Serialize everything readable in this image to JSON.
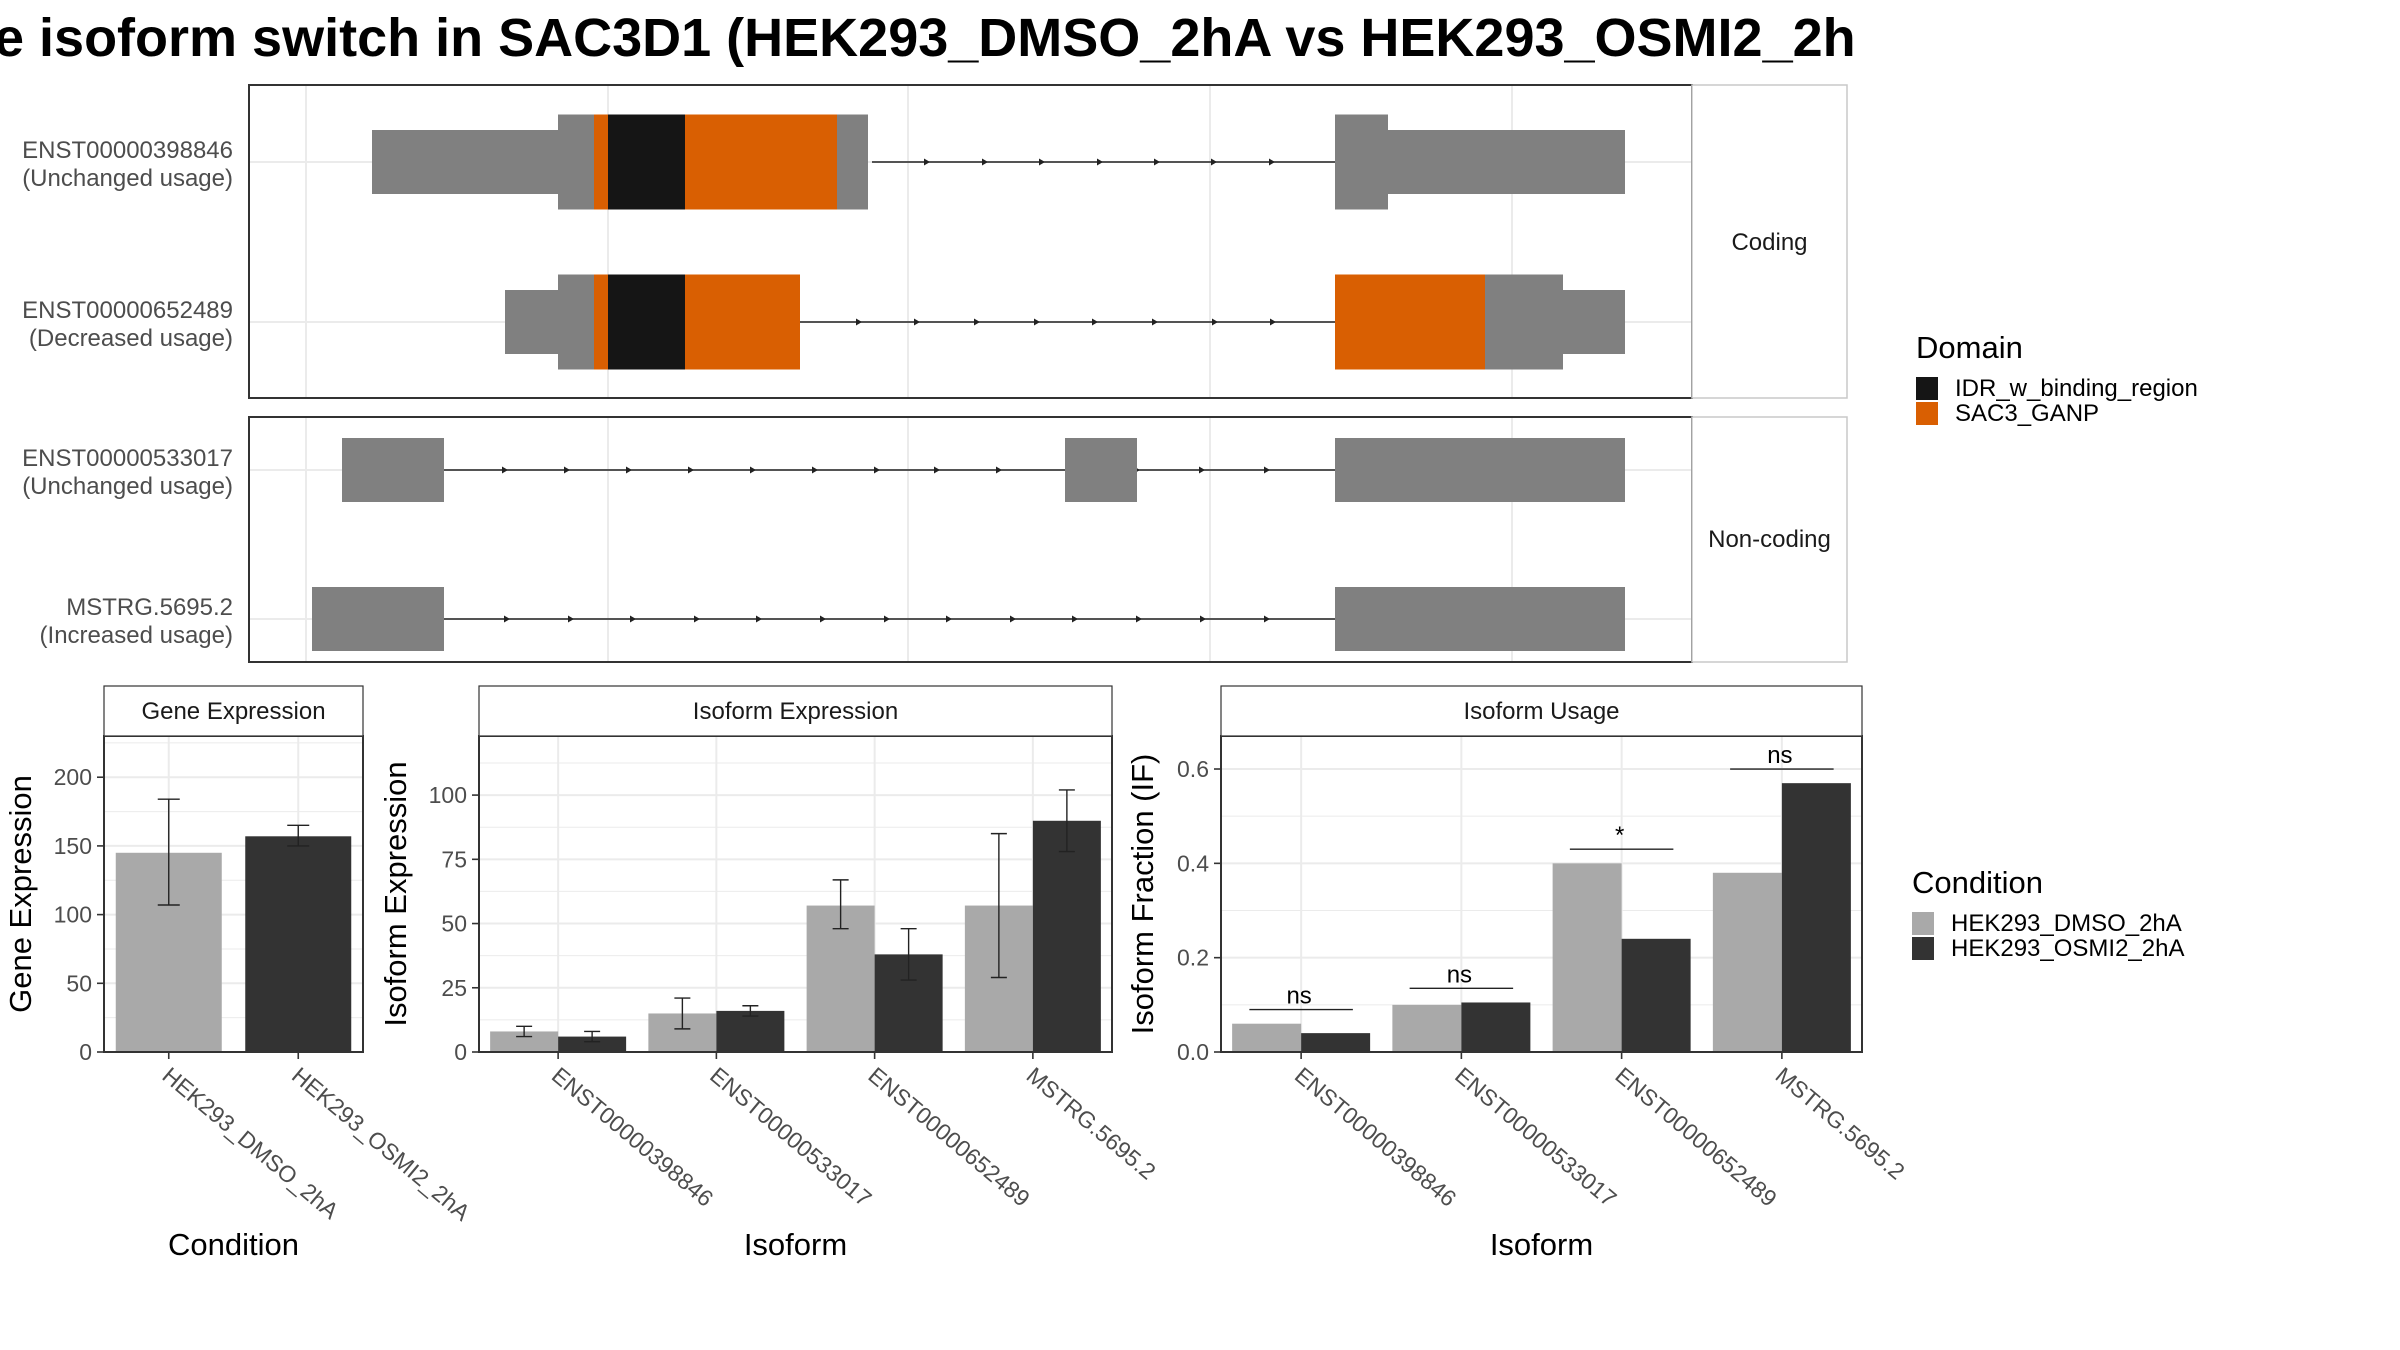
{
  "title": "e isoform switch in SAC3D1 (HEK293_DMSO_2hA vs HEK293_OSMI2_2h",
  "colors": {
    "cds": "#151515",
    "orange": "#d95f02",
    "grey": "#808080",
    "dmso": "#a9a9a9",
    "osmi": "#333333",
    "grid": "#ebebeb",
    "frame": "#333333",
    "strip": "#f2f2f2"
  },
  "structure": {
    "facets": [
      "Coding",
      "Non-coding"
    ],
    "transcripts": [
      {
        "id": "ENST00000398846",
        "usage": "(Unchanged usage)",
        "facet": 0
      },
      {
        "id": "ENST00000652489",
        "usage": "(Decreased usage)",
        "facet": 0
      },
      {
        "id": "ENST00000533017",
        "usage": "(Unchanged usage)",
        "facet": 1
      },
      {
        "id": "MSTRG.5695.2",
        "usage": "(Increased usage)",
        "facet": 1
      }
    ]
  },
  "legend_domain": {
    "title": "Domain",
    "items": [
      {
        "label": "IDR_w_binding_region",
        "color": "#151515"
      },
      {
        "label": "SAC3_GANP",
        "color": "#d95f02"
      }
    ]
  },
  "legend_condition": {
    "title": "Condition",
    "items": [
      {
        "label": "HEK293_DMSO_2hA",
        "color": "#a9a9a9"
      },
      {
        "label": "HEK293_OSMI2_2hA",
        "color": "#333333"
      }
    ]
  },
  "chart_data": [
    {
      "type": "bar",
      "title": "Gene Expression",
      "xlabel": "Condition",
      "ylabel": "Gene Expression",
      "ylim": [
        0,
        230
      ],
      "yticks": [
        0,
        50,
        100,
        150,
        200
      ],
      "categories": [
        "HEK293_DMSO_2hA",
        "HEK293_OSMI2_2hA"
      ],
      "values": [
        145,
        157
      ],
      "errors": [
        [
          107,
          184
        ],
        [
          150,
          165
        ]
      ]
    },
    {
      "type": "bar",
      "title": "Isoform Expression",
      "xlabel": "Isoform",
      "ylabel": "Isoform Expression",
      "ylim": [
        0,
        123
      ],
      "yticks": [
        0,
        25,
        50,
        75,
        100
      ],
      "categories": [
        "ENST00000398846",
        "ENST00000533017",
        "ENST00000652489",
        "MSTRG.5695.2"
      ],
      "series": [
        {
          "name": "HEK293_DMSO_2hA",
          "values": [
            8,
            15,
            57,
            57
          ],
          "errors": [
            [
              6,
              10
            ],
            [
              9,
              21
            ],
            [
              48,
              67
            ],
            [
              29,
              85
            ]
          ]
        },
        {
          "name": "HEK293_OSMI2_2hA",
          "values": [
            6,
            16,
            38,
            90
          ],
          "errors": [
            [
              4,
              8
            ],
            [
              14,
              18
            ],
            [
              28,
              48
            ],
            [
              78,
              102
            ]
          ]
        }
      ]
    },
    {
      "type": "bar",
      "title": "Isoform Usage",
      "xlabel": "Isoform",
      "ylabel": "Isoform Fraction (IF)",
      "ylim": [
        0,
        0.67
      ],
      "yticks": [
        "0.0",
        "0.2",
        "0.4",
        "0.6"
      ],
      "categories": [
        "ENST00000398846",
        "ENST00000533017",
        "ENST00000652489",
        "MSTRG.5695.2"
      ],
      "series": [
        {
          "name": "HEK293_DMSO_2hA",
          "values": [
            0.06,
            0.1,
            0.4,
            0.38
          ]
        },
        {
          "name": "HEK293_OSMI2_2hA",
          "values": [
            0.04,
            0.105,
            0.24,
            0.57
          ]
        }
      ],
      "significance": [
        {
          "label": "ns",
          "y": 0.09
        },
        {
          "label": "ns",
          "y": 0.135
        },
        {
          "label": "*",
          "y": 0.43
        },
        {
          "label": "ns",
          "y": 0.6
        }
      ]
    }
  ]
}
